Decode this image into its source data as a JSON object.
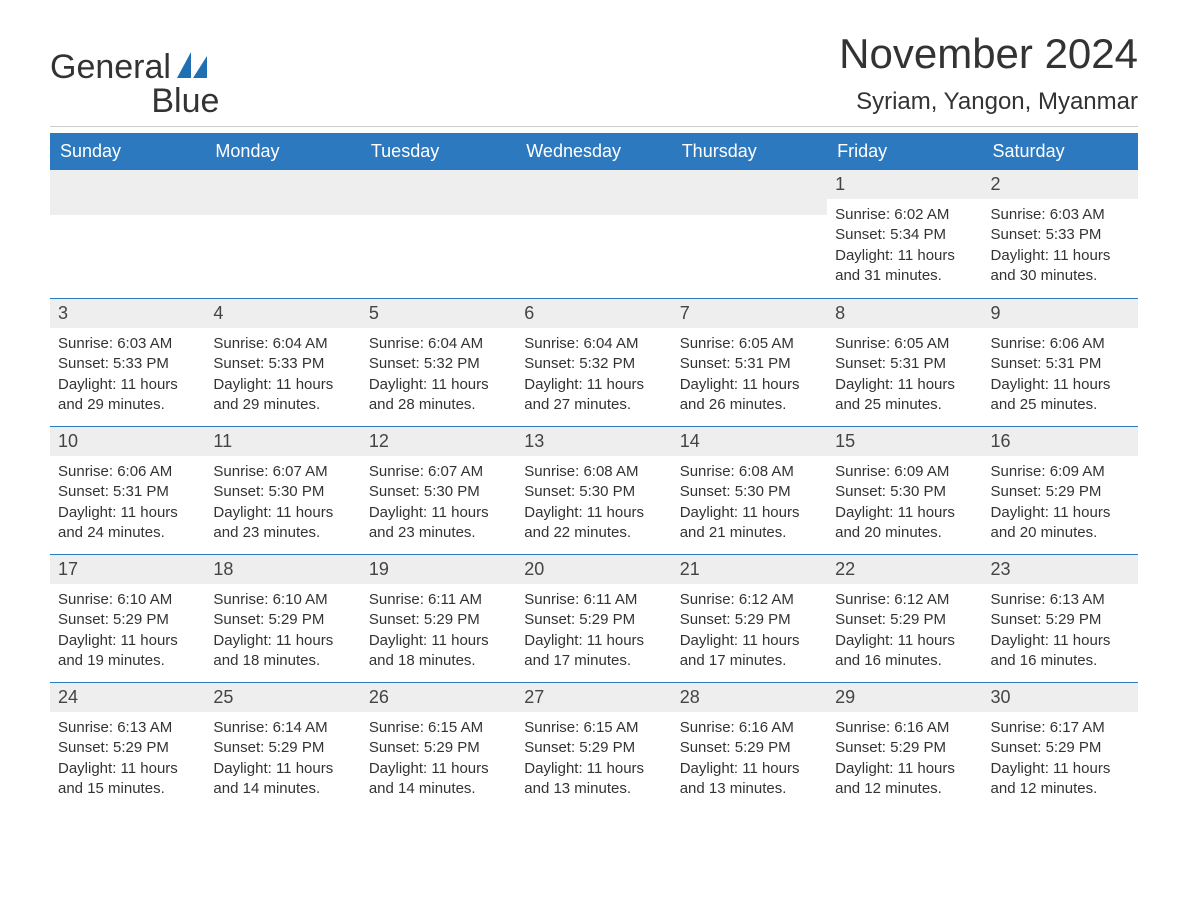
{
  "brand": {
    "part1": "General",
    "part2": "Blue",
    "color": "#1f6fb2"
  },
  "title": "November 2024",
  "location": "Syriam, Yangon, Myanmar",
  "colors": {
    "header_bg": "#2d79bf",
    "header_text": "#ffffff",
    "daynum_bg": "#eeeeee",
    "row_divider": "#2d79bf",
    "body_text": "#333333",
    "page_bg": "#ffffff",
    "top_divider": "#cccccc"
  },
  "layout": {
    "columns": 7,
    "rows": 5,
    "column_headers_fontsize": 18,
    "title_fontsize": 42,
    "location_fontsize": 24,
    "cell_fontsize": 15
  },
  "day_headers": [
    "Sunday",
    "Monday",
    "Tuesday",
    "Wednesday",
    "Thursday",
    "Friday",
    "Saturday"
  ],
  "labels": {
    "sunrise": "Sunrise:",
    "sunset": "Sunset:",
    "daylight": "Daylight:"
  },
  "weeks": [
    [
      null,
      null,
      null,
      null,
      null,
      {
        "n": 1,
        "sunrise": "6:02 AM",
        "sunset": "5:34 PM",
        "daylight": "11 hours and 31 minutes."
      },
      {
        "n": 2,
        "sunrise": "6:03 AM",
        "sunset": "5:33 PM",
        "daylight": "11 hours and 30 minutes."
      }
    ],
    [
      {
        "n": 3,
        "sunrise": "6:03 AM",
        "sunset": "5:33 PM",
        "daylight": "11 hours and 29 minutes."
      },
      {
        "n": 4,
        "sunrise": "6:04 AM",
        "sunset": "5:33 PM",
        "daylight": "11 hours and 29 minutes."
      },
      {
        "n": 5,
        "sunrise": "6:04 AM",
        "sunset": "5:32 PM",
        "daylight": "11 hours and 28 minutes."
      },
      {
        "n": 6,
        "sunrise": "6:04 AM",
        "sunset": "5:32 PM",
        "daylight": "11 hours and 27 minutes."
      },
      {
        "n": 7,
        "sunrise": "6:05 AM",
        "sunset": "5:31 PM",
        "daylight": "11 hours and 26 minutes."
      },
      {
        "n": 8,
        "sunrise": "6:05 AM",
        "sunset": "5:31 PM",
        "daylight": "11 hours and 25 minutes."
      },
      {
        "n": 9,
        "sunrise": "6:06 AM",
        "sunset": "5:31 PM",
        "daylight": "11 hours and 25 minutes."
      }
    ],
    [
      {
        "n": 10,
        "sunrise": "6:06 AM",
        "sunset": "5:31 PM",
        "daylight": "11 hours and 24 minutes."
      },
      {
        "n": 11,
        "sunrise": "6:07 AM",
        "sunset": "5:30 PM",
        "daylight": "11 hours and 23 minutes."
      },
      {
        "n": 12,
        "sunrise": "6:07 AM",
        "sunset": "5:30 PM",
        "daylight": "11 hours and 23 minutes."
      },
      {
        "n": 13,
        "sunrise": "6:08 AM",
        "sunset": "5:30 PM",
        "daylight": "11 hours and 22 minutes."
      },
      {
        "n": 14,
        "sunrise": "6:08 AM",
        "sunset": "5:30 PM",
        "daylight": "11 hours and 21 minutes."
      },
      {
        "n": 15,
        "sunrise": "6:09 AM",
        "sunset": "5:30 PM",
        "daylight": "11 hours and 20 minutes."
      },
      {
        "n": 16,
        "sunrise": "6:09 AM",
        "sunset": "5:29 PM",
        "daylight": "11 hours and 20 minutes."
      }
    ],
    [
      {
        "n": 17,
        "sunrise": "6:10 AM",
        "sunset": "5:29 PM",
        "daylight": "11 hours and 19 minutes."
      },
      {
        "n": 18,
        "sunrise": "6:10 AM",
        "sunset": "5:29 PM",
        "daylight": "11 hours and 18 minutes."
      },
      {
        "n": 19,
        "sunrise": "6:11 AM",
        "sunset": "5:29 PM",
        "daylight": "11 hours and 18 minutes."
      },
      {
        "n": 20,
        "sunrise": "6:11 AM",
        "sunset": "5:29 PM",
        "daylight": "11 hours and 17 minutes."
      },
      {
        "n": 21,
        "sunrise": "6:12 AM",
        "sunset": "5:29 PM",
        "daylight": "11 hours and 17 minutes."
      },
      {
        "n": 22,
        "sunrise": "6:12 AM",
        "sunset": "5:29 PM",
        "daylight": "11 hours and 16 minutes."
      },
      {
        "n": 23,
        "sunrise": "6:13 AM",
        "sunset": "5:29 PM",
        "daylight": "11 hours and 16 minutes."
      }
    ],
    [
      {
        "n": 24,
        "sunrise": "6:13 AM",
        "sunset": "5:29 PM",
        "daylight": "11 hours and 15 minutes."
      },
      {
        "n": 25,
        "sunrise": "6:14 AM",
        "sunset": "5:29 PM",
        "daylight": "11 hours and 14 minutes."
      },
      {
        "n": 26,
        "sunrise": "6:15 AM",
        "sunset": "5:29 PM",
        "daylight": "11 hours and 14 minutes."
      },
      {
        "n": 27,
        "sunrise": "6:15 AM",
        "sunset": "5:29 PM",
        "daylight": "11 hours and 13 minutes."
      },
      {
        "n": 28,
        "sunrise": "6:16 AM",
        "sunset": "5:29 PM",
        "daylight": "11 hours and 13 minutes."
      },
      {
        "n": 29,
        "sunrise": "6:16 AM",
        "sunset": "5:29 PM",
        "daylight": "11 hours and 12 minutes."
      },
      {
        "n": 30,
        "sunrise": "6:17 AM",
        "sunset": "5:29 PM",
        "daylight": "11 hours and 12 minutes."
      }
    ]
  ]
}
